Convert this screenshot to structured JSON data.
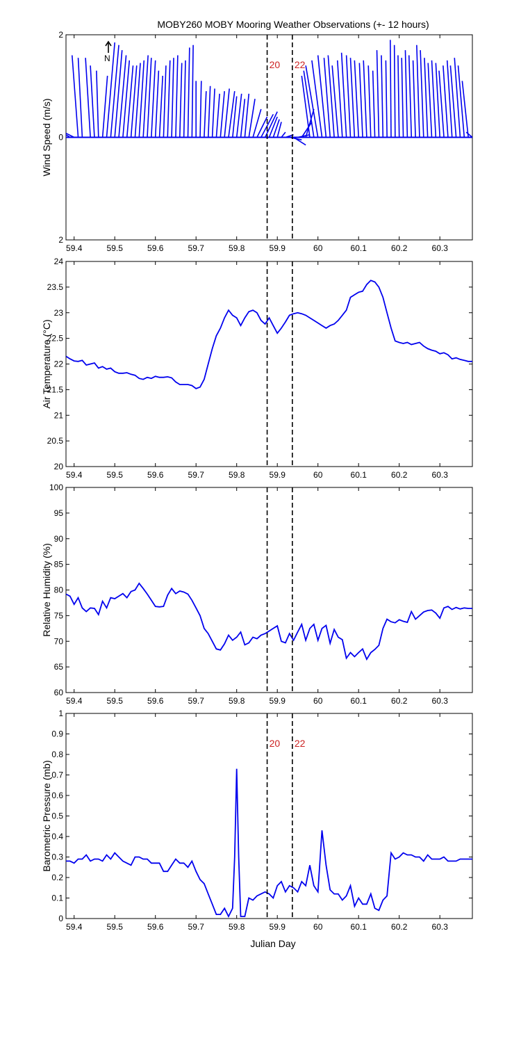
{
  "title": "MOBY260 MOBY Mooring Weather Observations (+- 12 hours)",
  "colors": {
    "series": "#0000ee",
    "marker_text": "#cc2222",
    "axes": "#000000"
  },
  "xticks": [
    59.4,
    59.5,
    59.6,
    59.7,
    59.8,
    59.9,
    60.0,
    60.1,
    60.2,
    60.3
  ],
  "xtick_labels": [
    "59.4",
    "59.5",
    "59.6",
    "59.7",
    "59.8",
    "59.9",
    "60",
    "60.1",
    "60.2",
    "60.3"
  ],
  "xlim": [
    59.38,
    60.38
  ],
  "xlabel": "Julian Day",
  "markers": [
    {
      "x": 59.875,
      "label": "20"
    },
    {
      "x": 59.937,
      "label": "22"
    }
  ],
  "north_arrow_label": "N",
  "chart_data": [
    {
      "type": "line",
      "subtype": "wind-vector-stick",
      "ylabel": "Wind Speed (m/s)",
      "ylim": [
        -2,
        2
      ],
      "yticks": [
        -2,
        0,
        2
      ],
      "ytick_labels": [
        "2",
        "0",
        "2"
      ],
      "show_markers": true,
      "series": [
        {
          "x": [
            59.38,
            59.39,
            59.4,
            59.41,
            59.42,
            59.44,
            59.45,
            59.46,
            59.47,
            59.48,
            59.49,
            59.5,
            59.51,
            59.52,
            59.53,
            59.54,
            59.55,
            59.56,
            59.57,
            59.58,
            59.59,
            59.6,
            59.61,
            59.62,
            59.63,
            59.64,
            59.65,
            59.66,
            59.67,
            59.68,
            59.69,
            59.7,
            59.71,
            59.72,
            59.73,
            59.74,
            59.75,
            59.76,
            59.77,
            59.78,
            59.79,
            59.8,
            59.81,
            59.82,
            59.83,
            59.84,
            59.85,
            59.86,
            59.87,
            59.88,
            59.89,
            59.9,
            59.91,
            59.92,
            59.93,
            59.94,
            59.95,
            59.96,
            59.97,
            59.98,
            59.99,
            60.0,
            60.01,
            60.02,
            60.03,
            60.04,
            60.05,
            60.06,
            60.07,
            60.08,
            60.09,
            60.1,
            60.11,
            60.12,
            60.13,
            60.14,
            60.15,
            60.16,
            60.17,
            60.18,
            60.19,
            60.2,
            60.21,
            60.22,
            60.23,
            60.24,
            60.25,
            60.26,
            60.27,
            60.28,
            60.29,
            60.3,
            60.31,
            60.32,
            60.33,
            60.34,
            60.35,
            60.36,
            60.37,
            60.38
          ],
          "u": [
            -0.45,
            -0.3,
            -0.25,
            -0.15,
            -0.1,
            -0.12,
            -0.1,
            -0.05,
            0.12,
            0.2,
            0.2,
            0.18,
            0.18,
            0.16,
            0.15,
            0.14,
            0.13,
            0.12,
            0.12,
            0.1,
            0.1,
            0.08,
            0.08,
            0.06,
            0.06,
            0.05,
            0.05,
            0.05,
            0.04,
            0.04,
            0.03,
            0.0,
            0.03,
            0.05,
            0.05,
            0.06,
            0.08,
            0.1,
            0.12,
            0.15,
            0.1,
            0.12,
            0.1,
            0.1,
            0.15,
            0.2,
            0.25,
            0.3,
            0.3,
            0.2,
            0.15,
            0.1,
            0.1,
            0.2,
            0.3,
            0.3,
            0.3,
            0.25,
            0.2,
            -0.2,
            -0.25,
            -0.3,
            -0.25,
            -0.2,
            -0.15,
            -0.15,
            -0.15,
            -0.12,
            -0.12,
            -0.1,
            -0.1,
            -0.1,
            -0.08,
            -0.08,
            -0.06,
            -0.05,
            -0.05,
            -0.04,
            -0.03,
            -0.02,
            -0.02,
            -0.03,
            -0.04,
            -0.05,
            -0.06,
            -0.06,
            -0.07,
            -0.08,
            -0.08,
            -0.09,
            -0.1,
            -0.1,
            -0.12,
            -0.12,
            -0.12,
            -0.14,
            -0.14,
            -0.15,
            -0.15,
            -0.15
          ],
          "v": [
            0.5,
            0.15,
            0.1,
            1.6,
            1.55,
            1.55,
            1.4,
            1.3,
            1.2,
            1.85,
            1.8,
            1.7,
            1.6,
            1.5,
            1.4,
            1.4,
            1.45,
            1.5,
            1.6,
            1.55,
            1.5,
            1.3,
            1.2,
            1.4,
            1.5,
            1.55,
            1.6,
            1.45,
            1.5,
            1.75,
            1.8,
            1.1,
            1.1,
            0.9,
            1.0,
            0.95,
            0.85,
            0.9,
            0.95,
            0.9,
            0.8,
            0.85,
            0.75,
            0.85,
            0.75,
            0.55,
            0.4,
            0.45,
            0.5,
            0.4,
            0.35,
            0.3,
            0.1,
            0.05,
            -0.05,
            -0.15,
            0.05,
            0.3,
            0.55,
            1.2,
            1.3,
            1.4,
            1.5,
            1.6,
            1.55,
            1.6,
            1.4,
            1.5,
            1.65,
            1.6,
            1.55,
            1.5,
            1.45,
            1.5,
            1.4,
            1.3,
            1.7,
            1.6,
            1.5,
            1.9,
            1.8,
            1.6,
            1.55,
            1.7,
            1.6,
            1.5,
            1.8,
            1.7,
            1.55,
            1.45,
            1.5,
            1.45,
            1.3,
            1.4,
            1.5,
            1.4,
            1.55,
            1.4,
            1.1,
            0.1
          ]
        }
      ]
    },
    {
      "type": "line",
      "ylabel": "Air Temperature (°C)",
      "ylim": [
        20,
        24
      ],
      "yticks": [
        20,
        20.5,
        21,
        21.5,
        22,
        22.5,
        23,
        23.5,
        24
      ],
      "ytick_labels": [
        "20",
        "20.5",
        "21",
        "21.5",
        "22",
        "22.5",
        "23",
        "23.5",
        "24"
      ],
      "series": [
        {
          "x": [
            59.38,
            59.39,
            59.4,
            59.41,
            59.42,
            59.43,
            59.44,
            59.45,
            59.46,
            59.47,
            59.48,
            59.49,
            59.5,
            59.51,
            59.52,
            59.53,
            59.54,
            59.55,
            59.56,
            59.57,
            59.58,
            59.59,
            59.6,
            59.61,
            59.62,
            59.63,
            59.64,
            59.65,
            59.66,
            59.67,
            59.68,
            59.69,
            59.7,
            59.71,
            59.72,
            59.73,
            59.74,
            59.75,
            59.76,
            59.77,
            59.78,
            59.79,
            59.8,
            59.81,
            59.82,
            59.83,
            59.84,
            59.85,
            59.86,
            59.87,
            59.88,
            59.89,
            59.9,
            59.91,
            59.92,
            59.93,
            59.94,
            59.95,
            59.96,
            59.97,
            59.98,
            59.99,
            60.0,
            60.01,
            60.02,
            60.03,
            60.04,
            60.05,
            60.06,
            60.07,
            60.08,
            60.09,
            60.1,
            60.11,
            60.12,
            60.13,
            60.14,
            60.15,
            60.16,
            60.17,
            60.18,
            60.19,
            60.2,
            60.21,
            60.22,
            60.23,
            60.24,
            60.25,
            60.26,
            60.27,
            60.28,
            60.29,
            60.3,
            60.31,
            60.32,
            60.33,
            60.34,
            60.35,
            60.36,
            60.37,
            60.38
          ],
          "y": [
            22.15,
            22.1,
            22.06,
            22.05,
            22.07,
            21.98,
            22.0,
            22.02,
            21.92,
            21.95,
            21.9,
            21.92,
            21.85,
            21.82,
            21.82,
            21.83,
            21.8,
            21.78,
            21.72,
            21.7,
            21.74,
            21.72,
            21.76,
            21.74,
            21.74,
            21.75,
            21.73,
            21.65,
            21.6,
            21.6,
            21.6,
            21.58,
            21.52,
            21.55,
            21.7,
            22.0,
            22.3,
            22.55,
            22.7,
            22.9,
            23.05,
            22.95,
            22.9,
            22.75,
            22.9,
            23.02,
            23.05,
            23.0,
            22.85,
            22.78,
            22.9,
            22.75,
            22.6,
            22.7,
            22.82,
            22.95,
            22.98,
            23.0,
            22.98,
            22.95,
            22.9,
            22.85,
            22.8,
            22.75,
            22.7,
            22.75,
            22.78,
            22.85,
            22.95,
            23.05,
            23.3,
            23.35,
            23.4,
            23.42,
            23.55,
            23.63,
            23.6,
            23.5,
            23.3,
            23.0,
            22.7,
            22.45,
            22.42,
            22.4,
            22.42,
            22.38,
            22.4,
            22.42,
            22.35,
            22.3,
            22.27,
            22.25,
            22.2,
            22.22,
            22.18,
            22.1,
            22.12,
            22.09,
            22.07,
            22.05,
            22.05
          ]
        }
      ]
    },
    {
      "type": "line",
      "ylabel": "Relative Humidity (%)",
      "ylim": [
        60,
        100
      ],
      "yticks": [
        60,
        65,
        70,
        75,
        80,
        85,
        90,
        95,
        100
      ],
      "ytick_labels": [
        "60",
        "65",
        "70",
        "75",
        "80",
        "85",
        "90",
        "95",
        "100"
      ],
      "series": [
        {
          "x": [
            59.38,
            59.39,
            59.4,
            59.41,
            59.42,
            59.43,
            59.44,
            59.45,
            59.46,
            59.47,
            59.48,
            59.49,
            59.5,
            59.51,
            59.52,
            59.53,
            59.54,
            59.55,
            59.56,
            59.57,
            59.58,
            59.59,
            59.6,
            59.61,
            59.62,
            59.63,
            59.64,
            59.65,
            59.66,
            59.67,
            59.68,
            59.69,
            59.7,
            59.71,
            59.72,
            59.73,
            59.74,
            59.75,
            59.76,
            59.77,
            59.78,
            59.79,
            59.8,
            59.81,
            59.82,
            59.83,
            59.84,
            59.85,
            59.86,
            59.87,
            59.88,
            59.89,
            59.9,
            59.91,
            59.92,
            59.93,
            59.94,
            59.95,
            59.96,
            59.97,
            59.98,
            59.99,
            60.0,
            60.01,
            60.02,
            60.03,
            60.04,
            60.05,
            60.06,
            60.07,
            60.08,
            60.09,
            60.1,
            60.11,
            60.12,
            60.13,
            60.14,
            60.15,
            60.16,
            60.17,
            60.18,
            60.19,
            60.2,
            60.21,
            60.22,
            60.23,
            60.24,
            60.25,
            60.26,
            60.27,
            60.28,
            60.29,
            60.3,
            60.31,
            60.32,
            60.33,
            60.34,
            60.35,
            60.36,
            60.37,
            60.38
          ],
          "y": [
            79.2,
            78.8,
            77.2,
            78.5,
            76.5,
            75.8,
            76.5,
            76.4,
            75.2,
            77.8,
            76.5,
            78.5,
            78.3,
            78.8,
            79.3,
            78.5,
            79.7,
            80.0,
            81.3,
            80.3,
            79.2,
            78.0,
            76.8,
            76.7,
            76.8,
            79.0,
            80.3,
            79.3,
            79.8,
            79.6,
            79.2,
            78.0,
            76.5,
            75.0,
            72.5,
            71.5,
            70.0,
            68.5,
            68.3,
            69.5,
            71.2,
            70.2,
            70.8,
            71.8,
            69.3,
            69.7,
            70.8,
            70.5,
            71.2,
            71.5,
            72.0,
            72.5,
            73.0,
            70.0,
            69.7,
            71.5,
            70.2,
            71.8,
            73.3,
            70.2,
            72.5,
            73.3,
            70.2,
            72.5,
            73.1,
            69.6,
            72.3,
            70.8,
            70.3,
            66.7,
            67.8,
            67.0,
            67.8,
            68.5,
            66.5,
            67.8,
            68.4,
            69.2,
            72.5,
            74.3,
            73.8,
            73.6,
            74.2,
            73.9,
            73.7,
            75.8,
            74.3,
            75.0,
            75.7,
            76.0,
            76.1,
            75.5,
            74.5,
            76.5,
            76.8,
            76.2,
            76.6,
            76.3,
            76.5,
            76.4,
            76.4
          ]
        }
      ]
    },
    {
      "type": "line",
      "ylabel": "Barometric Pressure (mb)",
      "ylim": [
        0,
        1
      ],
      "yticks": [
        0,
        0.1,
        0.2,
        0.3,
        0.4,
        0.5,
        0.6,
        0.7,
        0.8,
        0.9,
        1
      ],
      "ytick_labels": [
        "0",
        "0.1",
        "0.2",
        "0.3",
        "0.4",
        "0.5",
        "0.6",
        "0.7",
        "0.8",
        "0.9",
        "1"
      ],
      "series": [
        {
          "x": [
            59.38,
            59.39,
            59.4,
            59.41,
            59.42,
            59.43,
            59.44,
            59.45,
            59.46,
            59.47,
            59.48,
            59.49,
            59.5,
            59.51,
            59.52,
            59.53,
            59.54,
            59.55,
            59.56,
            59.57,
            59.58,
            59.59,
            59.6,
            59.61,
            59.62,
            59.63,
            59.64,
            59.65,
            59.66,
            59.67,
            59.68,
            59.69,
            59.7,
            59.71,
            59.72,
            59.73,
            59.74,
            59.75,
            59.76,
            59.77,
            59.78,
            59.79,
            59.795,
            59.8,
            59.805,
            59.81,
            59.82,
            59.83,
            59.84,
            59.85,
            59.86,
            59.87,
            59.88,
            59.89,
            59.9,
            59.91,
            59.92,
            59.93,
            59.94,
            59.95,
            59.96,
            59.97,
            59.98,
            59.99,
            60.0,
            60.01,
            60.02,
            60.03,
            60.04,
            60.05,
            60.06,
            60.07,
            60.08,
            60.09,
            60.1,
            60.11,
            60.12,
            60.13,
            60.14,
            60.15,
            60.16,
            60.17,
            60.18,
            60.19,
            60.2,
            60.21,
            60.22,
            60.23,
            60.24,
            60.25,
            60.26,
            60.27,
            60.28,
            60.29,
            60.3,
            60.31,
            60.32,
            60.33,
            60.34,
            60.35,
            60.36,
            60.37,
            60.38
          ],
          "y": [
            0.28,
            0.28,
            0.27,
            0.29,
            0.29,
            0.31,
            0.28,
            0.29,
            0.29,
            0.28,
            0.31,
            0.29,
            0.32,
            0.3,
            0.28,
            0.27,
            0.26,
            0.3,
            0.3,
            0.29,
            0.29,
            0.27,
            0.27,
            0.27,
            0.23,
            0.23,
            0.26,
            0.29,
            0.27,
            0.27,
            0.25,
            0.28,
            0.23,
            0.19,
            0.17,
            0.12,
            0.07,
            0.02,
            0.02,
            0.05,
            0.01,
            0.05,
            0.3,
            0.73,
            0.3,
            0.01,
            0.01,
            0.1,
            0.09,
            0.11,
            0.12,
            0.13,
            0.12,
            0.1,
            0.16,
            0.18,
            0.13,
            0.16,
            0.15,
            0.13,
            0.18,
            0.16,
            0.26,
            0.16,
            0.13,
            0.43,
            0.26,
            0.14,
            0.12,
            0.12,
            0.09,
            0.11,
            0.16,
            0.06,
            0.1,
            0.07,
            0.07,
            0.12,
            0.05,
            0.04,
            0.09,
            0.11,
            0.32,
            0.29,
            0.3,
            0.32,
            0.31,
            0.31,
            0.3,
            0.3,
            0.28,
            0.31,
            0.29,
            0.29,
            0.29,
            0.3,
            0.28,
            0.28,
            0.28,
            0.29,
            0.29,
            0.29,
            0.29
          ]
        }
      ]
    }
  ]
}
